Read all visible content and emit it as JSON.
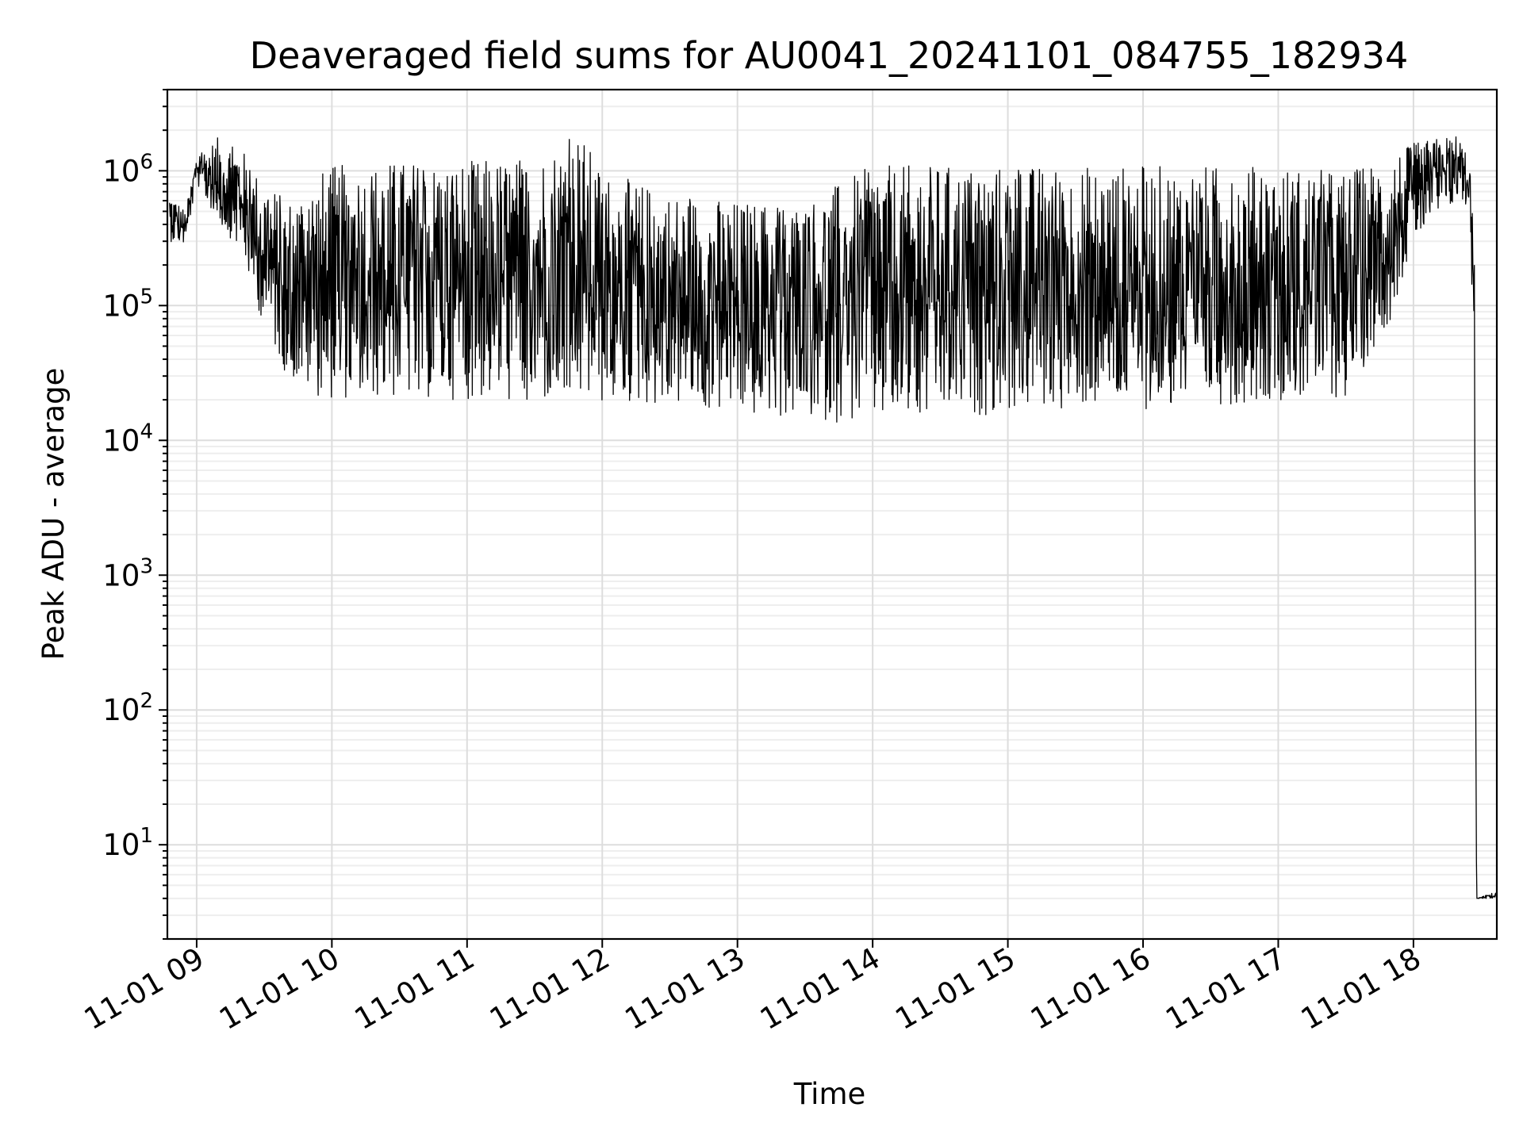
{
  "chart_data": {
    "type": "line",
    "title": "Deaveraged field sums for AU0041_20241101_084755_182934",
    "xlabel": "Time",
    "ylabel": "Peak ADU - average",
    "y_scale": "log",
    "grid": "on (major and minor)",
    "x_range": [
      "11-01 08:47",
      "11-01 18:37"
    ],
    "ylim": [
      2,
      4000000
    ],
    "x_ticks": [
      "11-01 09",
      "11-01 10",
      "11-01 11",
      "11-01 12",
      "11-01 13",
      "11-01 14",
      "11-01 15",
      "11-01 16",
      "11-01 17",
      "11-01 18"
    ],
    "y_ticks": [
      {
        "base": "10",
        "exp": "1",
        "value": 10
      },
      {
        "base": "10",
        "exp": "2",
        "value": 100
      },
      {
        "base": "10",
        "exp": "3",
        "value": 1000
      },
      {
        "base": "10",
        "exp": "4",
        "value": 10000
      },
      {
        "base": "10",
        "exp": "5",
        "value": 100000
      },
      {
        "base": "10",
        "exp": "6",
        "value": 1000000
      }
    ],
    "series": [
      {
        "color": "#000000",
        "envelope": [
          {
            "t": "08:48",
            "low": 300000,
            "high": 700000
          },
          {
            "t": "08:55",
            "low": 280000,
            "high": 500000
          },
          {
            "t": "09:00",
            "low": 800000,
            "high": 1300000
          },
          {
            "t": "09:10",
            "low": 400000,
            "high": 1800000
          },
          {
            "t": "09:20",
            "low": 250000,
            "high": 1500000
          },
          {
            "t": "09:25",
            "low": 120000,
            "high": 1000000
          },
          {
            "t": "09:30",
            "low": 70000,
            "high": 900000
          },
          {
            "t": "09:40",
            "low": 30000,
            "high": 600000
          },
          {
            "t": "09:50",
            "low": 22000,
            "high": 900000
          },
          {
            "t": "10:00",
            "low": 20000,
            "high": 1100000
          },
          {
            "t": "10:30",
            "low": 20000,
            "high": 1200000
          },
          {
            "t": "11:00",
            "low": 20000,
            "high": 1200000
          },
          {
            "t": "11:30",
            "low": 18000,
            "high": 1300000
          },
          {
            "t": "11:50",
            "low": 18000,
            "high": 2000000
          },
          {
            "t": "12:00",
            "low": 18000,
            "high": 1000000
          },
          {
            "t": "12:30",
            "low": 18000,
            "high": 700000
          },
          {
            "t": "13:00",
            "low": 15000,
            "high": 600000
          },
          {
            "t": "13:30",
            "low": 14000,
            "high": 600000
          },
          {
            "t": "14:00",
            "low": 13000,
            "high": 1100000
          },
          {
            "t": "14:30",
            "low": 14000,
            "high": 1100000
          },
          {
            "t": "15:00",
            "low": 16000,
            "high": 1100000
          },
          {
            "t": "15:30",
            "low": 17000,
            "high": 1100000
          },
          {
            "t": "16:00",
            "low": 17000,
            "high": 1100000
          },
          {
            "t": "16:30",
            "low": 18000,
            "high": 1100000
          },
          {
            "t": "17:00",
            "low": 20000,
            "high": 1100000
          },
          {
            "t": "17:30",
            "low": 20000,
            "high": 1000000
          },
          {
            "t": "17:50",
            "low": 80000,
            "high": 1300000
          },
          {
            "t": "18:00",
            "low": 300000,
            "high": 1600000
          },
          {
            "t": "18:20",
            "low": 600000,
            "high": 1900000
          },
          {
            "t": "18:25",
            "low": 500000,
            "high": 1200000
          },
          {
            "t": "18:27",
            "low": 30000,
            "high": 300000
          },
          {
            "t": "18:28",
            "low": 4,
            "high": 4
          },
          {
            "t": "18:37",
            "low": 4,
            "high": 4.5
          }
        ]
      }
    ]
  }
}
